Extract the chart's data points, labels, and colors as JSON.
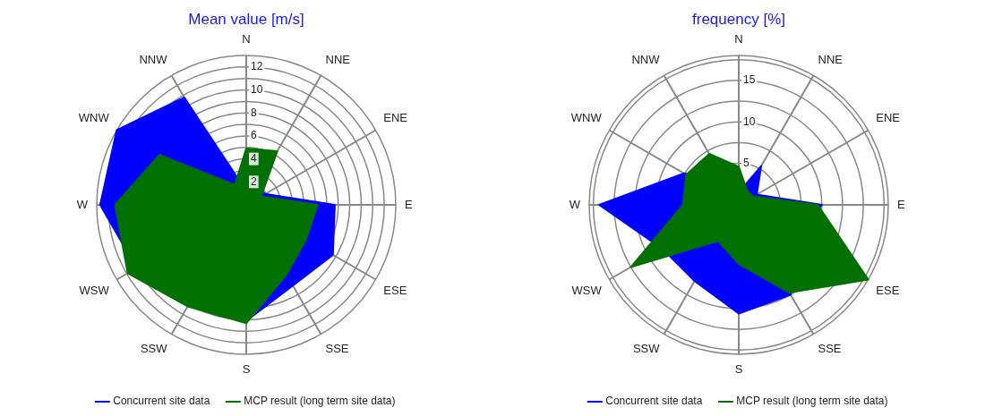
{
  "chart_data": [
    {
      "type": "radar",
      "title": "Mean value [m/s]",
      "categories": [
        "N",
        "NNE",
        "ENE",
        "E",
        "ESE",
        "SSE",
        "S",
        "SSW",
        "WSW",
        "W",
        "WNW",
        "NNW"
      ],
      "series": [
        {
          "name": "Concurrent site data",
          "color": "#0000ff",
          "values": [
            1.2,
            1.8,
            1.9,
            7.7,
            8.7,
            8.1,
            10.1,
            8.5,
            11.0,
            12.7,
            13.0,
            10.8
          ]
        },
        {
          "name": "MCP result (long term site data)",
          "color": "#007000",
          "values": [
            4.9,
            5.4,
            1.5,
            6.2,
            6.0,
            7.0,
            10.3,
            10.2,
            11.9,
            11.4,
            8.7,
            2.0
          ]
        }
      ],
      "ylim": [
        0,
        13
      ],
      "yticks": [
        2,
        4,
        6,
        8,
        10,
        12
      ],
      "grid": true,
      "legend": "bottom"
    },
    {
      "type": "radar",
      "title": "frequency [%]",
      "categories": [
        "N",
        "NNE",
        "ENE",
        "E",
        "ESE",
        "SSE",
        "S",
        "SSW",
        "WSW",
        "W",
        "WNW",
        "NNW"
      ],
      "series": [
        {
          "name": "Concurrent site data",
          "color": "#0000ff",
          "values": [
            1.5,
            5.4,
            2.5,
            10.0,
            8.0,
            12.5,
            13.1,
            10.6,
            10.6,
            16.8,
            7.6,
            3.0
          ]
        },
        {
          "name": "MCP result (long term site data)",
          "color": "#007000",
          "values": [
            4.6,
            2.0,
            2.0,
            9.5,
            18.0,
            12.2,
            7.1,
            5.0,
            15.0,
            6.7,
            7.3,
            7.1
          ]
        }
      ],
      "ylim": [
        0,
        18
      ],
      "yticks": [
        5,
        10,
        15
      ],
      "grid": true,
      "legend": "bottom"
    }
  ]
}
